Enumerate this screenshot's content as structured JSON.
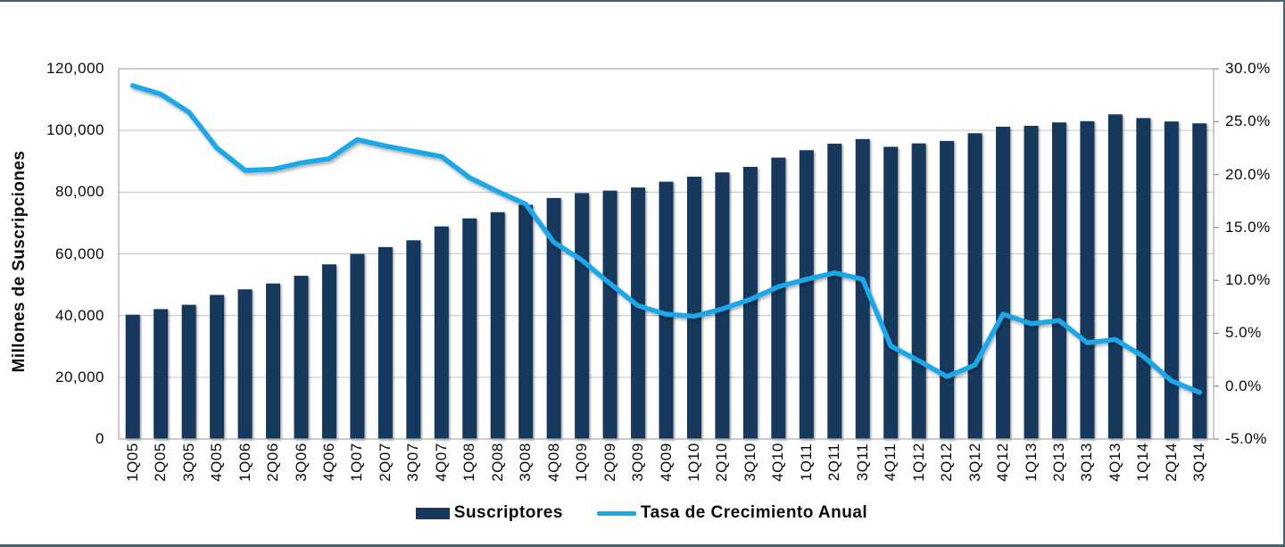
{
  "chart_data": {
    "type": "bar+line",
    "title": "",
    "categories": [
      "1Q05",
      "2Q05",
      "3Q05",
      "4Q05",
      "1Q06",
      "2Q06",
      "3Q06",
      "4Q06",
      "1Q07",
      "2Q07",
      "3Q07",
      "4Q07",
      "1Q08",
      "2Q08",
      "3Q08",
      "4Q08",
      "1Q09",
      "2Q09",
      "3Q09",
      "4Q09",
      "1Q10",
      "2Q10",
      "3Q10",
      "4Q10",
      "1Q11",
      "2Q11",
      "3Q11",
      "4Q11",
      "1Q12",
      "2Q12",
      "3Q12",
      "4Q12",
      "1Q13",
      "2Q13",
      "3Q13",
      "4Q13",
      "1Q14",
      "2Q14",
      "3Q14"
    ],
    "series": [
      {
        "name": "Suscriptores",
        "type": "bar",
        "axis": "left",
        "color": "#17375D",
        "values": [
          40300,
          42100,
          43500,
          46700,
          48500,
          50400,
          52900,
          56600,
          60000,
          62200,
          64400,
          68900,
          71500,
          73500,
          75900,
          78100,
          79700,
          80500,
          81500,
          83400,
          85000,
          86400,
          88200,
          91200,
          93600,
          95700,
          97200,
          94700,
          95800,
          96600,
          99100,
          101200,
          101500,
          102600,
          103000,
          105200,
          104000,
          102900,
          102300
        ]
      },
      {
        "name": "Tasa de Crecimiento Anual",
        "type": "line",
        "axis": "right",
        "color": "#1BA8E8",
        "values": [
          28.4,
          27.6,
          25.9,
          22.5,
          20.4,
          20.5,
          21.1,
          21.5,
          23.3,
          22.7,
          22.2,
          21.7,
          19.7,
          18.4,
          17.2,
          13.6,
          11.9,
          9.7,
          7.6,
          6.8,
          6.6,
          7.3,
          8.2,
          9.4,
          10.1,
          10.7,
          10.1,
          3.8,
          2.4,
          0.9,
          2.0,
          6.8,
          5.9,
          6.2,
          4.1,
          4.4,
          2.8,
          0.5,
          -0.6
        ]
      }
    ],
    "ylabel_left": "Millones de Suscripciones",
    "ylabel_right": "",
    "xlabel": "",
    "axis_left": {
      "range": [
        0,
        120000
      ],
      "tick_values": [
        0,
        20000,
        40000,
        60000,
        80000,
        100000,
        120000
      ],
      "tick_labels": [
        "0",
        "20,000",
        "40,000",
        "60,000",
        "80,000",
        "100,000",
        "120,000"
      ]
    },
    "axis_right": {
      "range": [
        -5,
        30
      ],
      "tick_values": [
        -5,
        0,
        5,
        10,
        15,
        20,
        25,
        30
      ],
      "tick_labels": [
        "-5.0%",
        "0.0%",
        "5.0%",
        "10.0%",
        "15.0%",
        "20.0%",
        "25.0%",
        "30.0%"
      ]
    },
    "grid": true,
    "legend_position": "bottom"
  },
  "colors": {
    "bar": "#17375D",
    "line": "#1BA8E8",
    "frame_border": "#47626D",
    "gridline": "#C3C3C3",
    "plot_border": "#A9A9A9",
    "tick": "#8C8C8C",
    "text": "#0A0A0A",
    "background": "#FFFFFF"
  }
}
